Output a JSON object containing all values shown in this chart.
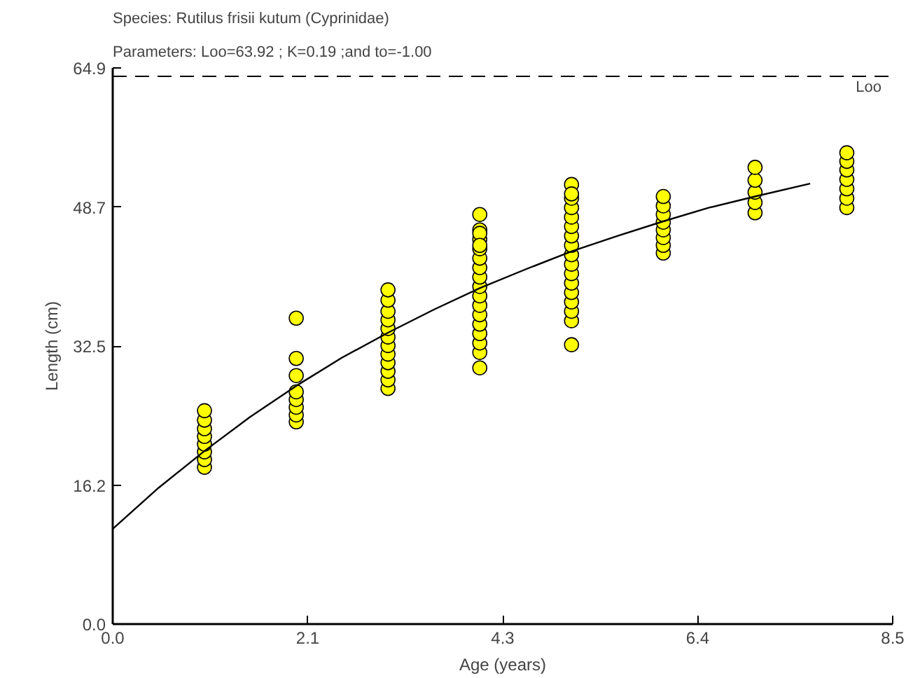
{
  "chart_data": {
    "type": "scatter",
    "title": "Species: Rutilus frisii kutum (Cyprinidae)",
    "subtitle": "Parameters: Loo=63.92 ; K=0.19 ;and to=-1.00",
    "xlabel": "Age (years)",
    "ylabel": "Length (cm)",
    "xlim": [
      0,
      8.5
    ],
    "ylim": [
      0,
      64.9
    ],
    "xticks": [
      {
        "value": 0,
        "label": "0.0"
      },
      {
        "value": 2.125,
        "label": "2.1"
      },
      {
        "value": 4.25,
        "label": "4.3"
      },
      {
        "value": 6.375,
        "label": "6.4"
      },
      {
        "value": 8.5,
        "label": "8.5"
      }
    ],
    "yticks": [
      {
        "value": 0,
        "label": "0.0"
      },
      {
        "value": 16.225,
        "label": "16.2"
      },
      {
        "value": 32.45,
        "label": "32.5"
      },
      {
        "value": 48.675,
        "label": "48.7"
      },
      {
        "value": 64.9,
        "label": "64.9"
      }
    ],
    "grid": false,
    "marker": "circle",
    "series": [
      {
        "color": "#ffff00",
        "x": [
          1,
          1,
          1,
          1,
          1,
          1,
          1,
          1,
          2,
          2,
          2,
          2,
          2,
          2,
          2,
          2,
          3,
          3,
          3,
          3,
          3,
          3,
          3,
          3,
          3,
          3,
          3,
          3,
          4,
          4,
          4,
          4,
          4,
          4,
          4,
          4,
          4,
          4,
          4,
          4,
          4,
          4,
          4,
          4,
          4,
          4,
          5,
          5,
          5,
          5,
          5,
          5,
          5,
          5,
          5,
          5,
          5,
          5,
          5,
          5,
          5,
          5,
          5,
          6,
          6,
          6,
          6,
          6,
          6,
          6,
          6,
          7,
          7,
          7,
          7,
          7,
          8,
          8,
          8,
          8,
          8,
          8,
          8
        ],
        "values": [
          18.3,
          19.2,
          20.1,
          21,
          21.9,
          22.8,
          23.8,
          24.9,
          23.6,
          24.4,
          25.3,
          26.2,
          27.1,
          29,
          31,
          35.7,
          27.5,
          28.5,
          29.5,
          30.5,
          31.5,
          32.5,
          33.5,
          34.5,
          35.5,
          36.5,
          37.8,
          39,
          29.9,
          31.7,
          32.8,
          33.9,
          35,
          36.1,
          37.2,
          38.3,
          39.4,
          40.5,
          41.6,
          42.7,
          43.8,
          44.9,
          46,
          47.8,
          45.6,
          44.2,
          32.6,
          35.4,
          36.5,
          37.6,
          38.7,
          39.8,
          40.9,
          42,
          43.1,
          44.2,
          45.3,
          46.4,
          47.5,
          48.6,
          49.7,
          51.3,
          50.2,
          43.3,
          44.2,
          45.1,
          46,
          46.9,
          47.8,
          48.8,
          49.9,
          48,
          49.2,
          50.4,
          51.8,
          53.3,
          48.6,
          49.7,
          50.8,
          51.9,
          53,
          54,
          55
        ]
      },
      {
        "type": "line",
        "marker": "none",
        "color": "#000000",
        "x": [
          0,
          0.5,
          1,
          1.5,
          2,
          2.5,
          3,
          3.5,
          4,
          4.5,
          5,
          5.5,
          6,
          6.5,
          7,
          7.6
        ],
        "values": [
          11.1,
          15.9,
          20.2,
          24.2,
          27.8,
          31.1,
          34,
          36.7,
          39.2,
          41.4,
          43.5,
          45.3,
          47,
          48.6,
          49.9,
          51.4
        ]
      }
    ],
    "ref_lines": [
      {
        "axis": "y",
        "value": 63.92,
        "label": "Loo",
        "color": "#000000",
        "line_style": "dashed"
      }
    ]
  }
}
